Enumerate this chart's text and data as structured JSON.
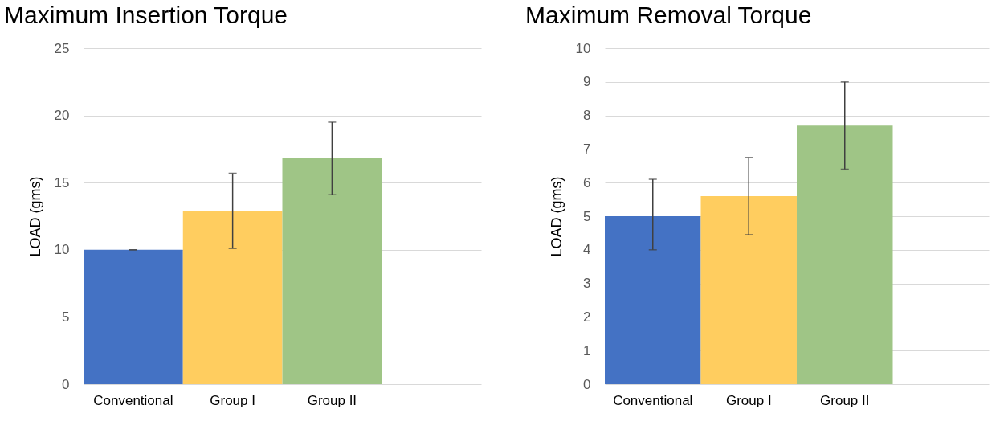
{
  "chart_data": [
    {
      "type": "bar",
      "title": "Maximum Insertion Torque",
      "ylabel": "LOAD (gms)",
      "categories": [
        "Conventional",
        "Group I",
        "Group II",
        null
      ],
      "values": [
        10,
        12.9,
        16.8,
        null
      ],
      "colors": [
        "#4472c4",
        "#ffcd5f",
        "#9fc586",
        "#ffffff"
      ],
      "errors": [
        0,
        [
          10.1,
          15.7
        ],
        [
          14.1,
          19.5
        ],
        null
      ],
      "ylim": [
        0,
        25
      ],
      "yticks": [
        0,
        5,
        10,
        15,
        20,
        25
      ],
      "grid": "y"
    },
    {
      "type": "bar",
      "title": "Maximum Removal Torque",
      "ylabel": "LOAD (gms)",
      "categories": [
        "Conventional",
        "Group I",
        "Group II",
        null
      ],
      "values": [
        5.0,
        5.6,
        7.7,
        null
      ],
      "colors": [
        "#4472c4",
        "#ffcd5f",
        "#9fc586",
        "#ffffff"
      ],
      "errors": [
        [
          4.0,
          6.1
        ],
        [
          4.45,
          6.75
        ],
        [
          6.4,
          9.0
        ],
        null
      ],
      "ylim": [
        0,
        10
      ],
      "yticks": [
        0,
        1,
        2,
        3,
        4,
        5,
        6,
        7,
        8,
        9,
        10
      ],
      "grid": "y"
    }
  ]
}
